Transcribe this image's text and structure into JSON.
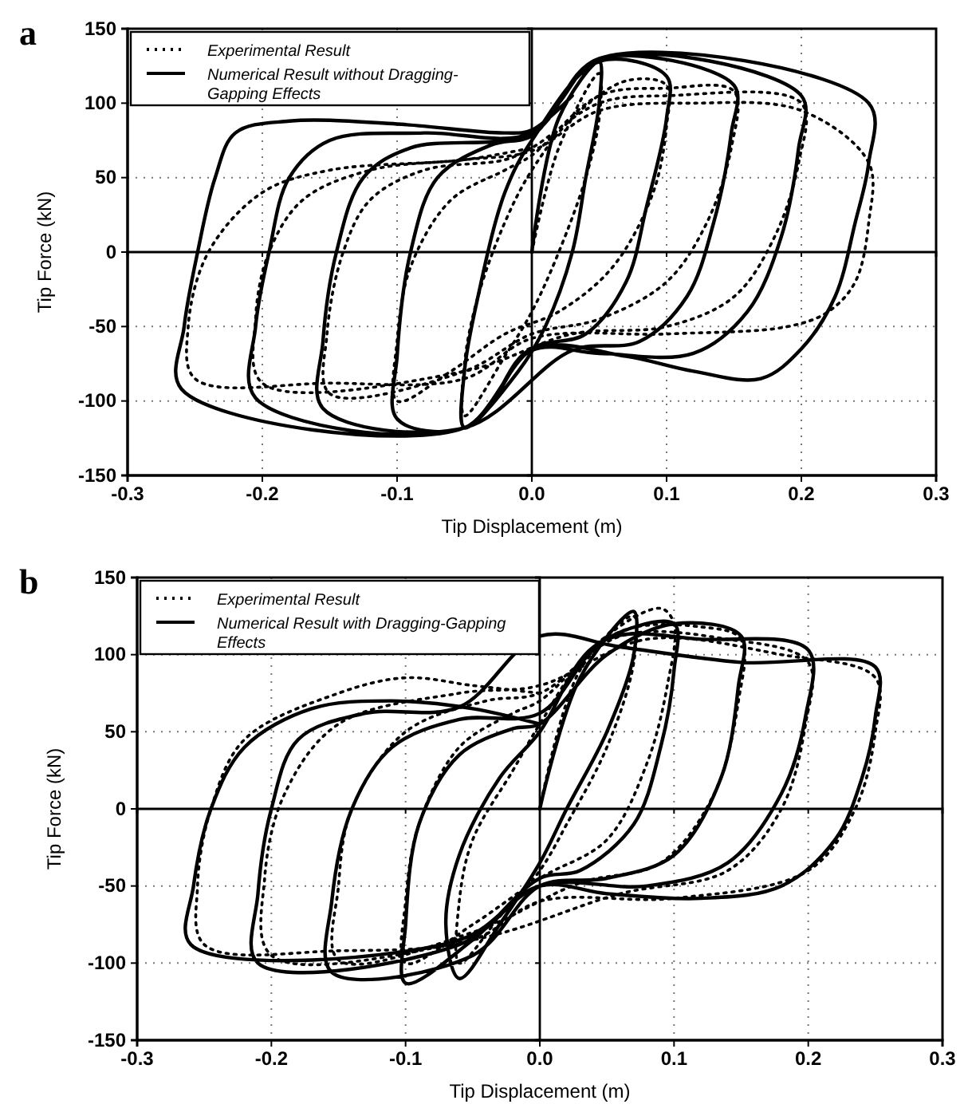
{
  "chart_data": [
    {
      "type": "line",
      "title": "a",
      "xlabel": "Tip Displacement (m)",
      "ylabel": "Tip Force (kN)",
      "xlim": [
        -0.3,
        0.3
      ],
      "xticks": [
        {
          "value": -0.3,
          "label": "-0.3"
        },
        {
          "value": -0.2,
          "label": "-0.2"
        },
        {
          "value": -0.1,
          "label": "-0.1"
        },
        {
          "value": 0,
          "label": "0.0"
        },
        {
          "value": 0.1,
          "label": "0.1"
        },
        {
          "value": 0.2,
          "label": "0.2"
        },
        {
          "value": 0.3,
          "label": "0.3"
        }
      ],
      "ylim": [
        -150,
        150
      ],
      "yticks": [
        -150,
        -100,
        -50,
        0,
        50,
        100,
        150
      ],
      "grid": true,
      "legend": "top left",
      "marker": "none",
      "series": [
        {
          "name": "Experimental Result",
          "color": "#000000",
          "line_style": "dotted",
          "x": [
            0,
            0.02,
            0.05,
            0.05,
            0.04,
            0.02,
            0,
            -0.02,
            -0.05,
            -0.05,
            -0.04,
            -0.02,
            0,
            0.03,
            0.07,
            0.1,
            0.1,
            0.09,
            0.06,
            0.02,
            -0.02,
            -0.06,
            -0.1,
            -0.1,
            -0.09,
            -0.06,
            -0.02,
            0,
            0.05,
            0.1,
            0.15,
            0.148,
            0.13,
            0.1,
            0.05,
            0,
            -0.05,
            -0.15,
            -0.152,
            -0.14,
            -0.12,
            -0.08,
            -0.02,
            0,
            0.05,
            0.1,
            0.2,
            0.198,
            0.18,
            0.15,
            0.1,
            0.03,
            -0.05,
            -0.2,
            -0.205,
            -0.195,
            -0.17,
            -0.12,
            -0.05,
            0,
            0.05,
            0.12,
            0.2,
            0.25,
            0.25,
            0.24,
            0.22,
            0.19,
            0.1,
            0,
            -0.05,
            -0.15,
            -0.25,
            -0.255,
            -0.24,
            -0.2,
            -0.15,
            -0.05,
            0
          ],
          "values": [
            0,
            70,
            120,
            90,
            50,
            0,
            -40,
            -70,
            -110,
            -75,
            -30,
            20,
            55,
            90,
            115,
            112,
            85,
            40,
            -10,
            -40,
            -55,
            -80,
            -100,
            -60,
            -10,
            35,
            55,
            65,
            105,
            110,
            108,
            70,
            20,
            -20,
            -45,
            -55,
            -80,
            -95,
            -55,
            0,
            35,
            55,
            62,
            70,
            100,
            105,
            100,
            60,
            10,
            -30,
            -50,
            -55,
            -80,
            -88,
            -45,
            0,
            35,
            55,
            62,
            68,
            95,
            100,
            95,
            60,
            20,
            -20,
            -40,
            -50,
            -55,
            -58,
            -85,
            -88,
            -85,
            -50,
            0,
            40,
            55,
            62,
            70
          ]
        },
        {
          "name": "Numerical Result without Dragging-Gapping Effects",
          "color": "#000000",
          "line_style": "solid",
          "x": [
            0,
            0.02,
            0.05,
            0.05,
            0.04,
            0.03,
            0.01,
            -0.01,
            -0.05,
            -0.05,
            -0.04,
            -0.02,
            0,
            0.05,
            0.1,
            0.1,
            0.085,
            0.07,
            0.04,
            0,
            -0.05,
            -0.1,
            -0.1,
            -0.09,
            -0.07,
            -0.03,
            0,
            0.02,
            0.05,
            0.15,
            0.148,
            0.135,
            0.115,
            0.08,
            0.03,
            -0.05,
            -0.155,
            -0.155,
            -0.145,
            -0.125,
            -0.09,
            0,
            0.05,
            0.2,
            0.198,
            0.185,
            0.16,
            0.12,
            0.05,
            0,
            -0.05,
            -0.205,
            -0.205,
            -0.195,
            -0.18,
            -0.15,
            -0.08,
            0,
            0.05,
            0.25,
            0.25,
            0.24,
            0.225,
            0.2,
            0.17,
            0.12,
            0.07,
            0,
            -0.05,
            -0.26,
            -0.258,
            -0.248,
            -0.235,
            -0.22,
            -0.18,
            -0.1,
            -0.02,
            0,
            0.03
          ],
          "values": [
            0,
            90,
            128,
            100,
            50,
            0,
            -50,
            -80,
            -118,
            -80,
            -30,
            40,
            75,
            128,
            118,
            90,
            30,
            -20,
            -55,
            -65,
            -118,
            -112,
            -70,
            0,
            50,
            72,
            78,
            100,
            130,
            112,
            80,
            20,
            -30,
            -60,
            -66,
            -118,
            -105,
            -60,
            0,
            50,
            70,
            80,
            130,
            105,
            70,
            10,
            -40,
            -68,
            -68,
            -66,
            -118,
            -98,
            -50,
            0,
            50,
            75,
            80,
            80,
            130,
            100,
            60,
            20,
            -30,
            -65,
            -85,
            -80,
            -70,
            -65,
            -118,
            -92,
            -50,
            0,
            50,
            80,
            88,
            86,
            80,
            82,
            105
          ]
        }
      ]
    },
    {
      "type": "line",
      "title": "b",
      "xlabel": "Tip Displacement (m)",
      "ylabel": "Tip Force (kN)",
      "xlim": [
        -0.3,
        0.3
      ],
      "xticks": [
        {
          "value": -0.3,
          "label": "-0.3"
        },
        {
          "value": -0.2,
          "label": "-0.2"
        },
        {
          "value": -0.1,
          "label": "-0.1"
        },
        {
          "value": 0,
          "label": "0.0"
        },
        {
          "value": 0.1,
          "label": "0.1"
        },
        {
          "value": 0.2,
          "label": "0.2"
        },
        {
          "value": 0.3,
          "label": "0.3"
        }
      ],
      "ylim": [
        -150,
        150
      ],
      "yticks": [
        -150,
        -100,
        -50,
        0,
        50,
        100,
        150
      ],
      "grid": true,
      "legend": "top left",
      "marker": "none",
      "series": [
        {
          "name": "Experimental Result",
          "color": "#000000",
          "line_style": "dotted",
          "x": [
            0,
            0.03,
            0.07,
            0.07,
            0.05,
            0.02,
            0,
            -0.03,
            -0.06,
            -0.06,
            -0.05,
            -0.02,
            0,
            0.04,
            0.09,
            0.1,
            0.095,
            0.08,
            0.05,
            0,
            -0.05,
            -0.1,
            -0.1,
            -0.09,
            -0.06,
            -0.02,
            0,
            0.06,
            0.12,
            0.15,
            0.148,
            0.13,
            0.09,
            0.03,
            -0.05,
            -0.15,
            -0.15,
            -0.14,
            -0.1,
            -0.04,
            0,
            0.06,
            0.14,
            0.2,
            0.198,
            0.18,
            0.14,
            0.06,
            -0.05,
            -0.2,
            -0.205,
            -0.19,
            -0.15,
            -0.06,
            0,
            0.08,
            0.18,
            0.25,
            0.25,
            0.235,
            0.2,
            0.1,
            0,
            -0.05,
            -0.15,
            -0.25,
            -0.255,
            -0.245,
            -0.22,
            -0.15,
            -0.1,
            -0.05,
            0
          ],
          "values": [
            0,
            90,
            125,
            95,
            40,
            -10,
            -40,
            -70,
            -100,
            -60,
            -20,
            25,
            55,
            105,
            130,
            120,
            80,
            30,
            -20,
            -45,
            -75,
            -100,
            -60,
            -10,
            40,
            62,
            70,
            115,
            118,
            110,
            70,
            10,
            -35,
            -48,
            -80,
            -98,
            -50,
            0,
            50,
            70,
            75,
            112,
            110,
            95,
            55,
            0,
            -40,
            -55,
            -85,
            -95,
            -45,
            10,
            55,
            75,
            80,
            110,
            100,
            85,
            50,
            0,
            -40,
            -58,
            -60,
            -85,
            -92,
            -88,
            -50,
            0,
            45,
            75,
            85,
            80,
            75
          ]
        },
        {
          "name": "Numerical Result with Dragging-Gapping Effects",
          "color": "#000000",
          "line_style": "solid",
          "x": [
            0,
            0.03,
            0.07,
            0.07,
            0.05,
            0.02,
            0,
            -0.03,
            -0.06,
            -0.07,
            -0.06,
            -0.03,
            0,
            0.04,
            0.1,
            0.1,
            0.09,
            0.07,
            0.03,
            0,
            -0.05,
            -0.1,
            -0.1,
            -0.09,
            -0.06,
            -0.02,
            0,
            0.05,
            0.1,
            0.15,
            0.148,
            0.135,
            0.1,
            0.05,
            0,
            -0.05,
            -0.155,
            -0.155,
            -0.14,
            -0.11,
            -0.06,
            0,
            0.05,
            0.12,
            0.2,
            0.198,
            0.18,
            0.14,
            0.08,
            0,
            -0.06,
            -0.21,
            -0.21,
            -0.2,
            -0.18,
            -0.13,
            -0.06,
            0,
            0.06,
            0.15,
            0.25,
            0.25,
            0.24,
            0.22,
            0.18,
            0.12,
            0.05,
            0,
            -0.06,
            -0.26,
            -0.258,
            -0.245,
            -0.22,
            -0.17,
            -0.11,
            -0.05,
            0
          ],
          "values": [
            0,
            85,
            128,
            100,
            50,
            0,
            -35,
            -75,
            -110,
            -75,
            -30,
            20,
            50,
            105,
            120,
            90,
            40,
            -10,
            -40,
            -45,
            -85,
            -113,
            -75,
            -10,
            35,
            52,
            55,
            100,
            120,
            112,
            80,
            20,
            -30,
            -45,
            -50,
            -95,
            -106,
            -60,
            0,
            40,
            58,
            62,
            110,
            110,
            103,
            60,
            10,
            -35,
            -50,
            -50,
            -88,
            -100,
            -55,
            0,
            45,
            62,
            66,
            112,
            105,
            95,
            92,
            60,
            20,
            -20,
            -50,
            -58,
            -55,
            -50,
            -85,
            -88,
            -50,
            0,
            40,
            65,
            70,
            65,
            55
          ]
        }
      ]
    }
  ]
}
